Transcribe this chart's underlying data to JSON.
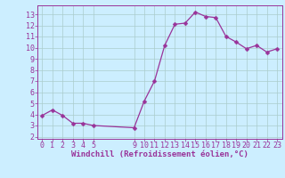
{
  "x": [
    0,
    1,
    2,
    3,
    4,
    5,
    9,
    10,
    11,
    12,
    13,
    14,
    15,
    16,
    17,
    18,
    19,
    20,
    21,
    22,
    23
  ],
  "y": [
    3.9,
    4.4,
    3.9,
    3.2,
    3.2,
    3.0,
    2.8,
    5.2,
    7.0,
    10.2,
    12.1,
    12.2,
    13.2,
    12.8,
    12.7,
    11.0,
    10.5,
    9.9,
    10.2,
    9.6,
    9.9
  ],
  "line_color": "#993399",
  "marker_color": "#993399",
  "bg_color": "#cceeff",
  "grid_color": "#aacccc",
  "xlabel": "Windchill (Refroidissement éolien,°C)",
  "xlabel_color": "#993399",
  "xticks": [
    0,
    1,
    2,
    3,
    4,
    5,
    9,
    10,
    11,
    12,
    13,
    14,
    15,
    16,
    17,
    18,
    19,
    20,
    21,
    22,
    23
  ],
  "yticks": [
    2,
    3,
    4,
    5,
    6,
    7,
    8,
    9,
    10,
    11,
    12,
    13
  ],
  "ylim": [
    1.8,
    13.8
  ],
  "xlim": [
    -0.5,
    23.5
  ],
  "tick_color": "#993399",
  "axis_color": "#993399",
  "font_size": 6.0,
  "marker_size": 2.5,
  "linewidth": 0.9
}
